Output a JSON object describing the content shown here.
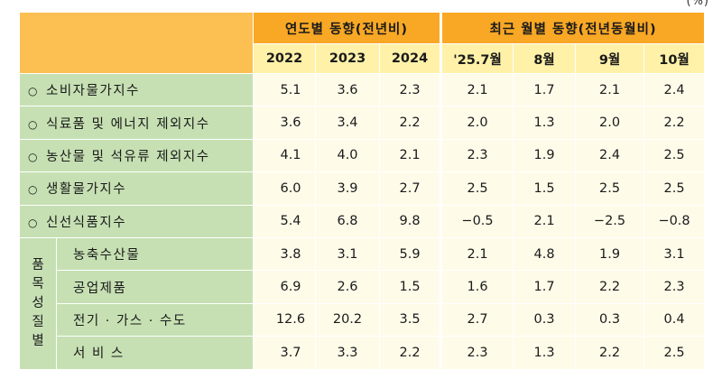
{
  "unit": "(%)",
  "header": {
    "annual_title": "연도별 동향(전년비)",
    "recent_title": "최근 월별 동향(전년동월비)",
    "columns": [
      "2022",
      "2023",
      "2024",
      "'25.7월",
      "8월",
      "9월",
      "10월"
    ]
  },
  "bullet": "○",
  "rows": [
    {
      "label": "소비자물가지수",
      "values": [
        "5.1",
        "3.6",
        "2.3",
        "2.1",
        "1.7",
        "2.1",
        "2.4"
      ]
    },
    {
      "label": "식료품 및 에너지 제외지수",
      "values": [
        "3.6",
        "3.4",
        "2.2",
        "2.0",
        "1.3",
        "2.0",
        "2.2"
      ]
    },
    {
      "label": "농산물 및 석유류 제외지수",
      "values": [
        "4.1",
        "4.0",
        "2.1",
        "2.3",
        "1.9",
        "2.4",
        "2.5"
      ]
    },
    {
      "label": "생활물가지수",
      "values": [
        "6.0",
        "3.9",
        "2.7",
        "2.5",
        "1.5",
        "2.5",
        "2.5"
      ]
    },
    {
      "label": "신선식품지수",
      "values": [
        "5.4",
        "6.8",
        "9.8",
        "−0.5",
        "2.1",
        "−2.5",
        "−0.8"
      ]
    }
  ],
  "item_group": {
    "title_chars": [
      "품",
      "목",
      "성",
      "질",
      "별"
    ],
    "rows": [
      {
        "label": "농축수산물",
        "values": [
          "3.8",
          "3.1",
          "5.9",
          "2.1",
          "4.8",
          "1.9",
          "3.1"
        ]
      },
      {
        "label": "공업제품",
        "values": [
          "6.9",
          "2.6",
          "1.5",
          "1.6",
          "1.7",
          "2.2",
          "2.3"
        ]
      },
      {
        "label": "전기 · 가스 · 수도",
        "values": [
          "12.6",
          "20.2",
          "3.5",
          "2.7",
          "0.3",
          "0.3",
          "0.4"
        ]
      },
      {
        "label": "서 비 스",
        "values": [
          "3.7",
          "3.3",
          "2.2",
          "2.3",
          "1.3",
          "2.2",
          "2.5"
        ]
      }
    ]
  }
}
